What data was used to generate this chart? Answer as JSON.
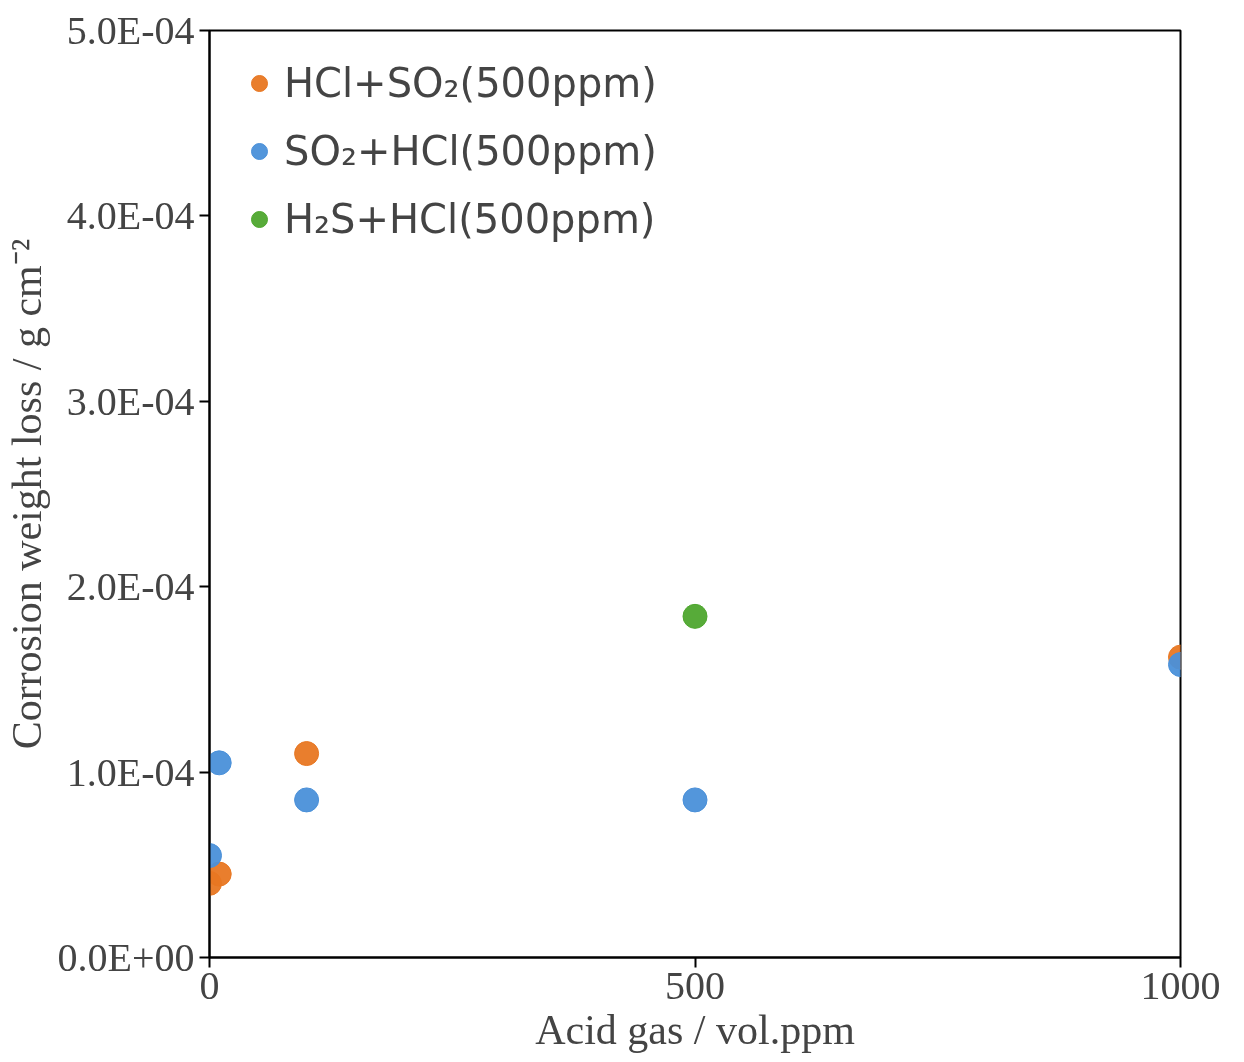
{
  "chart_data": {
    "type": "scatter",
    "xlabel": "Acid gas / vol.ppm",
    "ylabel": "Corrosion weight loss / g cm⁻²",
    "series": [
      {
        "name": "HCl+SO₂(500ppm)",
        "color": "#e87722",
        "x": [
          0,
          10,
          100,
          1000
        ],
        "values": [
          4e-05,
          4.5e-05,
          0.00011,
          0.000162
        ]
      },
      {
        "name": "SO₂+HCl(500ppm)",
        "color": "#4a90d9",
        "x": [
          0,
          10,
          100,
          500,
          1000
        ],
        "values": [
          5.5e-05,
          0.000105,
          8.5e-05,
          8.5e-05,
          0.000158
        ]
      },
      {
        "name": "H₂S+HCl(500ppm)",
        "color": "#4ea72e",
        "x": [
          500
        ],
        "values": [
          0.000184
        ]
      }
    ],
    "xlim": [
      0,
      1000
    ],
    "xticks": [
      0,
      500,
      1000
    ],
    "ylim": [
      0,
      0.0005
    ],
    "yticks": [
      {
        "value": 0,
        "label": "0.0E+00"
      },
      {
        "value": 0.0001,
        "label": "1.0E-04"
      },
      {
        "value": 0.0002,
        "label": "2.0E-04"
      },
      {
        "value": 0.0003,
        "label": "3.0E-04"
      },
      {
        "value": 0.0004,
        "label": "4.0E-04"
      },
      {
        "value": 0.0005,
        "label": "5.0E-04"
      }
    ],
    "marker": "circle",
    "grid": false,
    "legend": "top left"
  }
}
